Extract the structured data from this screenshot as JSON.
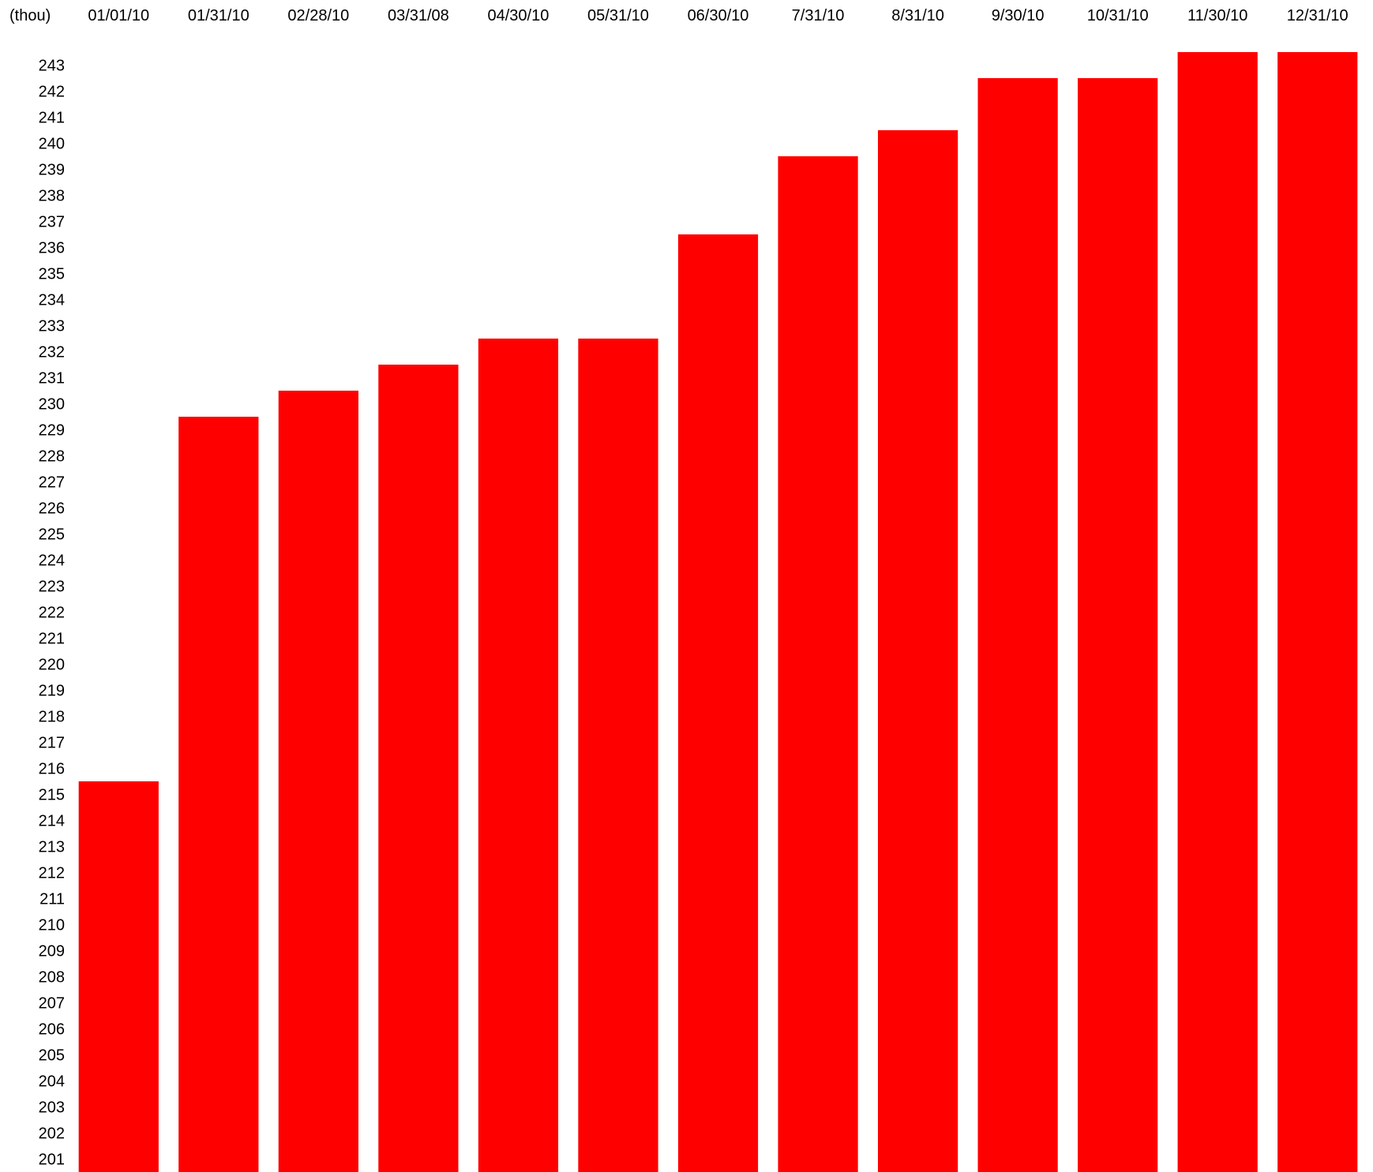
{
  "chart_data": {
    "type": "bar",
    "unit_label": "(thou)",
    "categories": [
      "01/01/10",
      "01/31/10",
      "02/28/10",
      "03/31/08",
      "04/30/10",
      "05/31/10",
      "06/30/10",
      "7/31/10",
      "8/31/10",
      "9/30/10",
      "10/31/10",
      "11/30/10",
      "12/31/10"
    ],
    "values": [
      215.5,
      229.5,
      230.5,
      231.5,
      232.5,
      232.5,
      236.5,
      239.5,
      240.5,
      242.5,
      242.5,
      243.5,
      243.5
    ],
    "y_ticks": [
      201,
      202,
      203,
      204,
      205,
      206,
      207,
      208,
      209,
      210,
      211,
      212,
      213,
      214,
      215,
      216,
      217,
      218,
      219,
      220,
      221,
      222,
      223,
      224,
      225,
      226,
      227,
      228,
      229,
      230,
      231,
      232,
      233,
      234,
      235,
      236,
      237,
      238,
      239,
      240,
      241,
      242,
      243
    ],
    "ylim": [
      200.5,
      243.5
    ],
    "x_axis_position": "top",
    "grid": false,
    "bar_color": "#ff0000"
  }
}
